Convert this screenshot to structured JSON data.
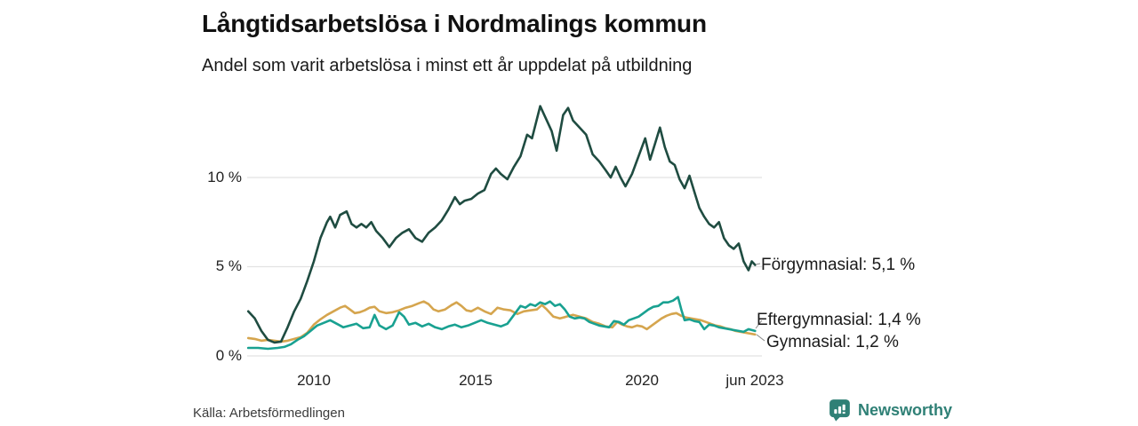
{
  "page": {
    "source": "Källa: Arbetsförmedlingen",
    "brand": "Newsworthy",
    "background": "#ffffff"
  },
  "colors": {
    "title_text": "#111111",
    "body_text": "#1a1a1a",
    "axis_text": "#222222",
    "gridline": "#e2e2e2",
    "leader": "#888888",
    "brand_teal": "#2f8076",
    "forgymnasial": "#1f4c41",
    "eftergymnasial": "#19a191",
    "gymnasial": "#d5a54e"
  },
  "icons": {
    "brand_logo": "newsworthy-speech-bubble-bar-chart-icon"
  },
  "chart_data": {
    "type": "line",
    "title": "Långtidsarbetslösa i Nordmalings kommun",
    "subtitle": "Andel som varit arbetslösa i minst ett år uppdelat på utbildning",
    "xlabel": "",
    "ylabel": "",
    "grid": "horizontal-only",
    "legend_position": "end-of-line-labels",
    "x_axis": {
      "range": [
        2008.0,
        2023.45
      ],
      "ticks": [
        {
          "label": "2010",
          "value": 2010
        },
        {
          "label": "2015",
          "value": 2015
        },
        {
          "label": "2020",
          "value": 2020
        },
        {
          "label": "jun 2023",
          "value": 2023.45
        }
      ]
    },
    "y_axis": {
      "range": [
        0,
        14.5
      ],
      "unit": "%",
      "ticks": [
        {
          "label": "0 %",
          "value": 0
        },
        {
          "label": "5 %",
          "value": 5
        },
        {
          "label": "10 %",
          "value": 10
        }
      ]
    },
    "series": [
      {
        "name": "Gymnasial",
        "color": "#d5a54e",
        "end_value_display": "1,2 %",
        "end_label": "Gymnasial: 1,2 %",
        "points": [
          [
            2008.0,
            1.0
          ],
          [
            2008.2,
            0.95
          ],
          [
            2008.4,
            0.85
          ],
          [
            2008.6,
            0.9
          ],
          [
            2008.8,
            0.85
          ],
          [
            2009.0,
            0.8
          ],
          [
            2009.2,
            0.85
          ],
          [
            2009.4,
            0.95
          ],
          [
            2009.6,
            1.05
          ],
          [
            2009.8,
            1.3
          ],
          [
            2010.0,
            1.75
          ],
          [
            2010.2,
            2.05
          ],
          [
            2010.4,
            2.3
          ],
          [
            2010.6,
            2.5
          ],
          [
            2010.8,
            2.7
          ],
          [
            2010.95,
            2.8
          ],
          [
            2011.1,
            2.6
          ],
          [
            2011.25,
            2.4
          ],
          [
            2011.4,
            2.45
          ],
          [
            2011.55,
            2.55
          ],
          [
            2011.7,
            2.7
          ],
          [
            2011.85,
            2.75
          ],
          [
            2012.0,
            2.5
          ],
          [
            2012.2,
            2.4
          ],
          [
            2012.4,
            2.45
          ],
          [
            2012.6,
            2.55
          ],
          [
            2012.8,
            2.7
          ],
          [
            2013.0,
            2.8
          ],
          [
            2013.2,
            2.95
          ],
          [
            2013.35,
            3.05
          ],
          [
            2013.5,
            2.9
          ],
          [
            2013.65,
            2.6
          ],
          [
            2013.8,
            2.5
          ],
          [
            2014.0,
            2.6
          ],
          [
            2014.2,
            2.85
          ],
          [
            2014.35,
            3.0
          ],
          [
            2014.5,
            2.8
          ],
          [
            2014.65,
            2.55
          ],
          [
            2014.8,
            2.5
          ],
          [
            2015.0,
            2.7
          ],
          [
            2015.2,
            2.5
          ],
          [
            2015.4,
            2.35
          ],
          [
            2015.6,
            2.7
          ],
          [
            2015.8,
            2.6
          ],
          [
            2016.0,
            2.55
          ],
          [
            2016.2,
            2.35
          ],
          [
            2016.4,
            2.5
          ],
          [
            2016.6,
            2.55
          ],
          [
            2016.8,
            2.6
          ],
          [
            2016.95,
            2.85
          ],
          [
            2017.1,
            2.6
          ],
          [
            2017.3,
            2.2
          ],
          [
            2017.5,
            2.1
          ],
          [
            2017.7,
            2.2
          ],
          [
            2017.9,
            2.3
          ],
          [
            2018.1,
            2.2
          ],
          [
            2018.3,
            2.1
          ],
          [
            2018.5,
            1.9
          ],
          [
            2018.7,
            1.8
          ],
          [
            2018.9,
            1.65
          ],
          [
            2019.1,
            1.6
          ],
          [
            2019.25,
            1.9
          ],
          [
            2019.4,
            1.75
          ],
          [
            2019.55,
            1.65
          ],
          [
            2019.7,
            1.6
          ],
          [
            2019.85,
            1.7
          ],
          [
            2020.0,
            1.65
          ],
          [
            2020.15,
            1.5
          ],
          [
            2020.3,
            1.7
          ],
          [
            2020.45,
            1.9
          ],
          [
            2020.6,
            2.1
          ],
          [
            2020.75,
            2.25
          ],
          [
            2020.9,
            2.35
          ],
          [
            2021.05,
            2.4
          ],
          [
            2021.2,
            2.25
          ],
          [
            2021.35,
            2.15
          ],
          [
            2021.5,
            2.1
          ],
          [
            2021.65,
            2.05
          ],
          [
            2021.8,
            2.0
          ],
          [
            2021.95,
            1.9
          ],
          [
            2022.1,
            1.8
          ],
          [
            2022.25,
            1.7
          ],
          [
            2022.4,
            1.65
          ],
          [
            2022.55,
            1.55
          ],
          [
            2022.7,
            1.5
          ],
          [
            2022.85,
            1.4
          ],
          [
            2023.0,
            1.35
          ],
          [
            2023.15,
            1.3
          ],
          [
            2023.3,
            1.25
          ],
          [
            2023.45,
            1.2
          ]
        ]
      },
      {
        "name": "Eftergymnasial",
        "color": "#19a191",
        "end_value_display": "1,4 %",
        "end_label": "Eftergymnasial: 1,4 %",
        "points": [
          [
            2008.0,
            0.45
          ],
          [
            2008.3,
            0.45
          ],
          [
            2008.6,
            0.4
          ],
          [
            2008.9,
            0.45
          ],
          [
            2009.1,
            0.5
          ],
          [
            2009.3,
            0.65
          ],
          [
            2009.5,
            0.9
          ],
          [
            2009.7,
            1.1
          ],
          [
            2009.9,
            1.4
          ],
          [
            2010.1,
            1.7
          ],
          [
            2010.3,
            1.85
          ],
          [
            2010.5,
            2.0
          ],
          [
            2010.7,
            1.8
          ],
          [
            2010.9,
            1.6
          ],
          [
            2011.1,
            1.7
          ],
          [
            2011.3,
            1.8
          ],
          [
            2011.5,
            1.55
          ],
          [
            2011.7,
            1.6
          ],
          [
            2011.85,
            2.3
          ],
          [
            2012.0,
            1.7
          ],
          [
            2012.2,
            1.5
          ],
          [
            2012.4,
            1.7
          ],
          [
            2012.6,
            2.45
          ],
          [
            2012.75,
            2.2
          ],
          [
            2012.9,
            1.75
          ],
          [
            2013.1,
            1.85
          ],
          [
            2013.3,
            1.65
          ],
          [
            2013.5,
            1.8
          ],
          [
            2013.7,
            1.6
          ],
          [
            2013.9,
            1.5
          ],
          [
            2014.1,
            1.65
          ],
          [
            2014.3,
            1.75
          ],
          [
            2014.5,
            1.6
          ],
          [
            2014.7,
            1.7
          ],
          [
            2014.9,
            1.85
          ],
          [
            2015.1,
            2.0
          ],
          [
            2015.3,
            1.85
          ],
          [
            2015.5,
            1.75
          ],
          [
            2015.7,
            1.65
          ],
          [
            2015.9,
            1.8
          ],
          [
            2016.1,
            2.3
          ],
          [
            2016.3,
            2.8
          ],
          [
            2016.45,
            2.7
          ],
          [
            2016.6,
            2.9
          ],
          [
            2016.75,
            2.8
          ],
          [
            2016.9,
            3.0
          ],
          [
            2017.05,
            2.9
          ],
          [
            2017.2,
            3.05
          ],
          [
            2017.35,
            2.8
          ],
          [
            2017.5,
            2.9
          ],
          [
            2017.65,
            2.6
          ],
          [
            2017.8,
            2.2
          ],
          [
            2017.95,
            2.1
          ],
          [
            2018.1,
            2.15
          ],
          [
            2018.25,
            2.1
          ],
          [
            2018.4,
            1.9
          ],
          [
            2018.55,
            1.8
          ],
          [
            2018.7,
            1.7
          ],
          [
            2018.85,
            1.65
          ],
          [
            2019.0,
            1.6
          ],
          [
            2019.15,
            1.95
          ],
          [
            2019.3,
            1.9
          ],
          [
            2019.45,
            1.75
          ],
          [
            2019.6,
            2.0
          ],
          [
            2019.75,
            2.1
          ],
          [
            2019.9,
            2.2
          ],
          [
            2020.05,
            2.4
          ],
          [
            2020.2,
            2.6
          ],
          [
            2020.35,
            2.75
          ],
          [
            2020.5,
            2.8
          ],
          [
            2020.65,
            3.0
          ],
          [
            2020.8,
            3.0
          ],
          [
            2020.95,
            3.1
          ],
          [
            2021.1,
            3.3
          ],
          [
            2021.2,
            2.6
          ],
          [
            2021.3,
            2.0
          ],
          [
            2021.45,
            2.05
          ],
          [
            2021.6,
            1.95
          ],
          [
            2021.75,
            1.9
          ],
          [
            2021.9,
            1.5
          ],
          [
            2022.05,
            1.75
          ],
          [
            2022.2,
            1.7
          ],
          [
            2022.35,
            1.6
          ],
          [
            2022.5,
            1.55
          ],
          [
            2022.65,
            1.5
          ],
          [
            2022.8,
            1.45
          ],
          [
            2022.95,
            1.4
          ],
          [
            2023.1,
            1.35
          ],
          [
            2023.25,
            1.5
          ],
          [
            2023.45,
            1.4
          ]
        ]
      },
      {
        "name": "Förgymnasial",
        "color": "#1f4c41",
        "end_value_display": "5,1 %",
        "end_label": "Förgymnasial: 5,1 %",
        "points": [
          [
            2008.0,
            2.5
          ],
          [
            2008.2,
            2.1
          ],
          [
            2008.4,
            1.4
          ],
          [
            2008.6,
            0.9
          ],
          [
            2008.8,
            0.75
          ],
          [
            2009.0,
            0.8
          ],
          [
            2009.2,
            1.6
          ],
          [
            2009.4,
            2.5
          ],
          [
            2009.6,
            3.2
          ],
          [
            2009.8,
            4.2
          ],
          [
            2010.0,
            5.3
          ],
          [
            2010.2,
            6.6
          ],
          [
            2010.4,
            7.5
          ],
          [
            2010.5,
            7.8
          ],
          [
            2010.65,
            7.2
          ],
          [
            2010.8,
            7.9
          ],
          [
            2011.0,
            8.1
          ],
          [
            2011.15,
            7.4
          ],
          [
            2011.3,
            7.2
          ],
          [
            2011.45,
            7.4
          ],
          [
            2011.6,
            7.2
          ],
          [
            2011.75,
            7.5
          ],
          [
            2011.9,
            7.0
          ],
          [
            2012.1,
            6.6
          ],
          [
            2012.3,
            6.1
          ],
          [
            2012.5,
            6.6
          ],
          [
            2012.7,
            6.9
          ],
          [
            2012.9,
            7.1
          ],
          [
            2013.1,
            6.6
          ],
          [
            2013.3,
            6.4
          ],
          [
            2013.5,
            6.9
          ],
          [
            2013.7,
            7.2
          ],
          [
            2013.9,
            7.6
          ],
          [
            2014.1,
            8.2
          ],
          [
            2014.3,
            8.9
          ],
          [
            2014.45,
            8.5
          ],
          [
            2014.6,
            8.7
          ],
          [
            2014.8,
            8.8
          ],
          [
            2015.0,
            9.1
          ],
          [
            2015.2,
            9.3
          ],
          [
            2015.4,
            10.2
          ],
          [
            2015.55,
            10.5
          ],
          [
            2015.7,
            10.2
          ],
          [
            2015.9,
            9.9
          ],
          [
            2016.1,
            10.6
          ],
          [
            2016.3,
            11.2
          ],
          [
            2016.5,
            12.4
          ],
          [
            2016.65,
            12.2
          ],
          [
            2016.9,
            14.0
          ],
          [
            2017.1,
            13.2
          ],
          [
            2017.25,
            12.6
          ],
          [
            2017.4,
            11.5
          ],
          [
            2017.6,
            13.5
          ],
          [
            2017.75,
            13.9
          ],
          [
            2017.9,
            13.2
          ],
          [
            2018.1,
            12.8
          ],
          [
            2018.3,
            12.4
          ],
          [
            2018.5,
            11.3
          ],
          [
            2018.7,
            10.9
          ],
          [
            2018.9,
            10.4
          ],
          [
            2019.05,
            10.0
          ],
          [
            2019.2,
            10.6
          ],
          [
            2019.35,
            10.0
          ],
          [
            2019.5,
            9.5
          ],
          [
            2019.7,
            10.2
          ],
          [
            2019.9,
            11.2
          ],
          [
            2020.1,
            12.2
          ],
          [
            2020.25,
            11.0
          ],
          [
            2020.4,
            11.9
          ],
          [
            2020.55,
            12.8
          ],
          [
            2020.7,
            11.7
          ],
          [
            2020.85,
            10.9
          ],
          [
            2021.0,
            10.7
          ],
          [
            2021.15,
            9.9
          ],
          [
            2021.3,
            9.4
          ],
          [
            2021.45,
            10.1
          ],
          [
            2021.6,
            9.2
          ],
          [
            2021.75,
            8.3
          ],
          [
            2021.9,
            7.8
          ],
          [
            2022.05,
            7.4
          ],
          [
            2022.2,
            7.2
          ],
          [
            2022.35,
            7.5
          ],
          [
            2022.5,
            6.6
          ],
          [
            2022.65,
            6.2
          ],
          [
            2022.8,
            6.0
          ],
          [
            2022.95,
            6.3
          ],
          [
            2023.1,
            5.3
          ],
          [
            2023.25,
            4.8
          ],
          [
            2023.35,
            5.3
          ],
          [
            2023.45,
            5.1
          ]
        ]
      }
    ]
  }
}
